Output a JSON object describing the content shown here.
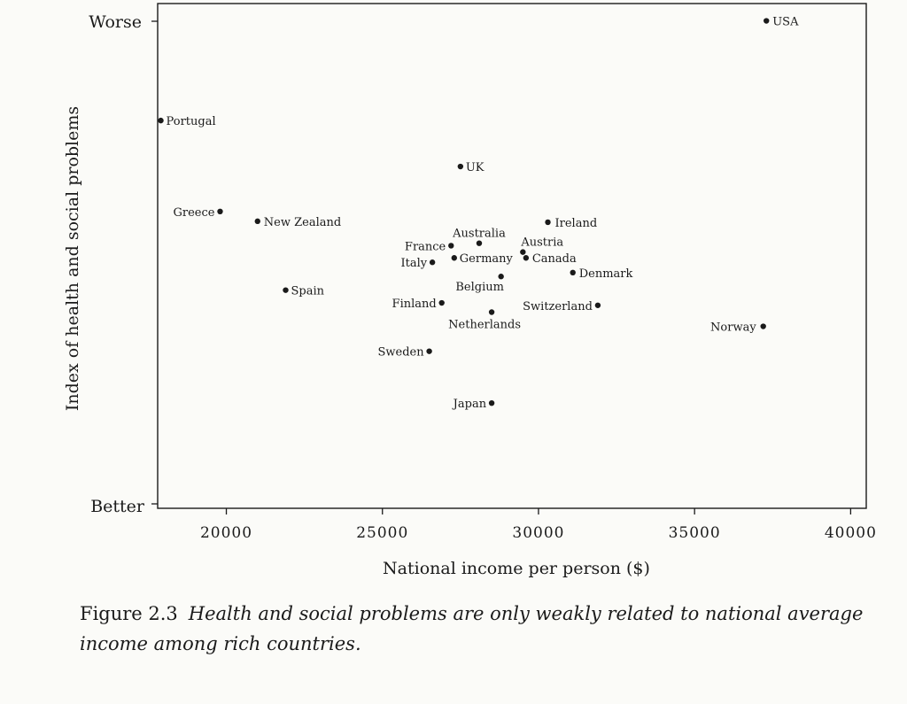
{
  "chart_data": {
    "type": "scatter",
    "xlabel": "National income per person ($)",
    "ylabel": "Index of health and social problems",
    "xlim": [
      17800,
      40500
    ],
    "ylim": [
      0,
      100
    ],
    "x_ticks": [
      20000,
      25000,
      30000,
      35000,
      40000
    ],
    "x_tick_labels": [
      "20000",
      "25000",
      "30000",
      "35000",
      "40000"
    ],
    "y_tick_labels": {
      "top": "Worse",
      "bottom": "Better"
    },
    "grid": false,
    "points": [
      {
        "label": "USA",
        "x": 37300,
        "y": 99.0
      },
      {
        "label": "Portugal",
        "x": 17900,
        "y": 78.6
      },
      {
        "label": "UK",
        "x": 27500,
        "y": 69.2
      },
      {
        "label": "Greece",
        "x": 19800,
        "y": 60.0
      },
      {
        "label": "New Zealand",
        "x": 21000,
        "y": 58.0
      },
      {
        "label": "Ireland",
        "x": 30300,
        "y": 57.8
      },
      {
        "label": "Australia",
        "x": 28100,
        "y": 53.5
      },
      {
        "label": "France",
        "x": 27200,
        "y": 53.0
      },
      {
        "label": "Austria",
        "x": 29500,
        "y": 51.7
      },
      {
        "label": "Germany",
        "x": 27300,
        "y": 50.5
      },
      {
        "label": "Canada",
        "x": 29600,
        "y": 50.5
      },
      {
        "label": "Italy",
        "x": 26600,
        "y": 49.6
      },
      {
        "label": "Denmark",
        "x": 31100,
        "y": 47.5
      },
      {
        "label": "Belgium",
        "x": 28800,
        "y": 46.7
      },
      {
        "label": "Spain",
        "x": 21900,
        "y": 43.9
      },
      {
        "label": "Finland",
        "x": 26900,
        "y": 41.3
      },
      {
        "label": "Switzerland",
        "x": 31900,
        "y": 40.8
      },
      {
        "label": "Netherlands",
        "x": 28500,
        "y": 39.4
      },
      {
        "label": "Norway",
        "x": 37200,
        "y": 36.5
      },
      {
        "label": "Sweden",
        "x": 26500,
        "y": 31.4
      },
      {
        "label": "Japan",
        "x": 28500,
        "y": 20.8
      }
    ]
  },
  "caption": {
    "figure_number": "Figure 2.3",
    "text": "Health and social problems are only weakly related to national average income among rich countries."
  }
}
